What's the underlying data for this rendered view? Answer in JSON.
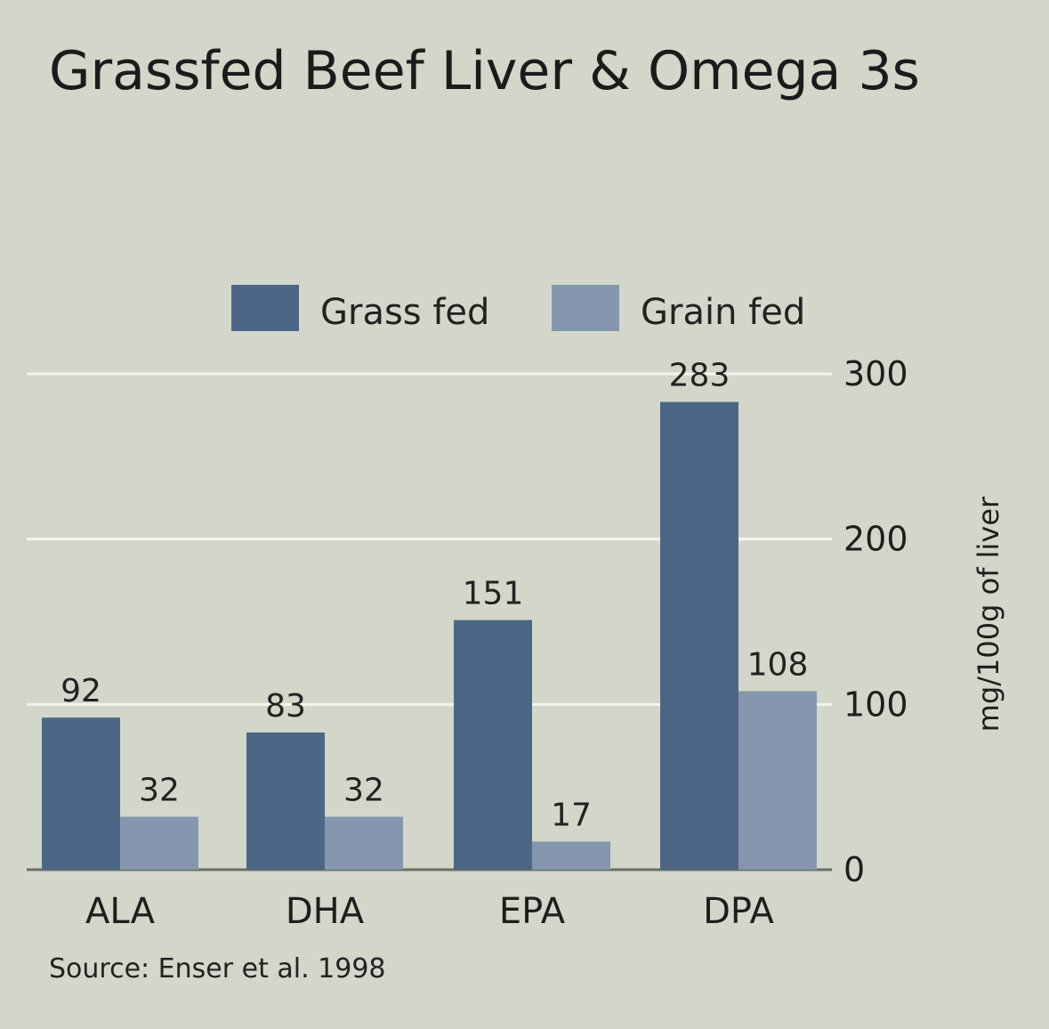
{
  "chart_data": {
    "type": "bar",
    "title": "Grassfed Beef Liver & Omega 3s",
    "categories": [
      "ALA",
      "DHA",
      "EPA",
      "DPA"
    ],
    "series": [
      {
        "name": "Grass fed",
        "values": [
          92,
          83,
          151,
          283
        ],
        "color": "#4b6785"
      },
      {
        "name": "Grain fed",
        "values": [
          32,
          32,
          17,
          108
        ],
        "color": "#8497ae"
      }
    ],
    "ylabel": "mg/100g of liver",
    "ylim": [
      0,
      300
    ],
    "yticks": [
      0,
      100,
      200,
      300
    ],
    "y_axis_side": "right",
    "legend_position": "top",
    "grid": true,
    "source": "Source: Enser et al. 1998"
  }
}
